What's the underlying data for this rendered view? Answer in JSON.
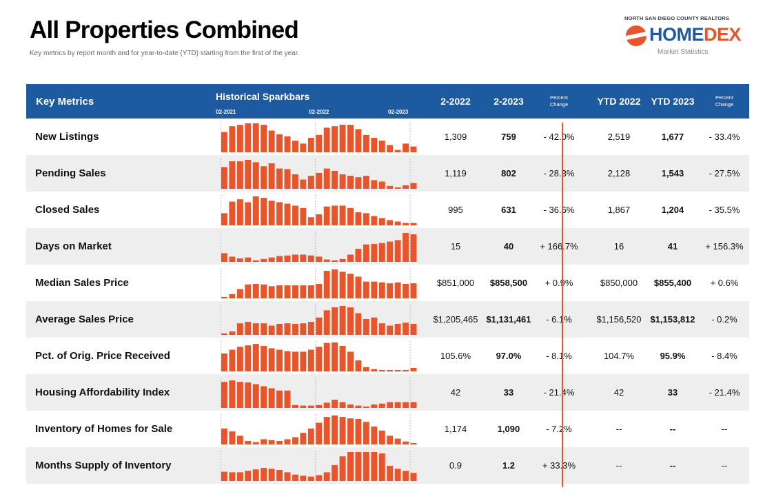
{
  "header": {
    "title": "All Properties Combined",
    "subtitle": "Key metrics by report month and for year-to-date (YTD) starting from the first of the year."
  },
  "logo": {
    "top_text": "NORTH SAN DIEGO COUNTY REALTORS",
    "word_home": "HOME",
    "word_dex": "DEX",
    "sub_text": "Market Statistics"
  },
  "columns": {
    "key_metrics": "Key Metrics",
    "sparkbars": "Historical Sparkbars",
    "spark_dates": [
      "02-2021",
      "02-2022",
      "02-2023"
    ],
    "month_prev": "2-2022",
    "month_curr": "2-2023",
    "pct_change_1": "Percent",
    "pct_change_2": "Change",
    "ytd_prev": "YTD 2022",
    "ytd_curr": "YTD 2023"
  },
  "colors": {
    "header_bg": "#1d5aa0",
    "bar": "#e8552a",
    "row_alt": "#eeeeee",
    "divider": "#e8552a"
  },
  "rows": [
    {
      "label": "New Listings",
      "prev": "1,309",
      "curr": "759",
      "pct": "- 42.0%",
      "ytd_prev": "2,519",
      "ytd_curr": "1,677",
      "ytd_pct": "- 33.4%",
      "spark": [
        0.7,
        0.9,
        0.95,
        1.0,
        1.0,
        0.95,
        0.75,
        0.62,
        0.55,
        0.4,
        0.3,
        0.5,
        0.6,
        0.85,
        0.9,
        0.95,
        0.95,
        0.8,
        0.6,
        0.5,
        0.4,
        0.25,
        0.08,
        0.3,
        0.2
      ]
    },
    {
      "label": "Pending Sales",
      "prev": "1,119",
      "curr": "802",
      "pct": "- 28.3%",
      "ytd_prev": "2,128",
      "ytd_curr": "1,543",
      "ytd_pct": "- 27.5%",
      "spark": [
        0.75,
        0.95,
        0.95,
        1.0,
        0.92,
        0.78,
        0.88,
        0.7,
        0.68,
        0.5,
        0.32,
        0.45,
        0.55,
        0.7,
        0.62,
        0.5,
        0.45,
        0.4,
        0.45,
        0.3,
        0.25,
        0.1,
        0.05,
        0.12,
        0.2
      ]
    },
    {
      "label": "Closed Sales",
      "prev": "995",
      "curr": "631",
      "pct": "- 36.6%",
      "ytd_prev": "1,867",
      "ytd_curr": "1,204",
      "ytd_pct": "- 35.5%",
      "spark": [
        0.42,
        0.82,
        0.9,
        0.8,
        1.0,
        0.95,
        0.85,
        0.8,
        0.75,
        0.68,
        0.6,
        0.28,
        0.38,
        0.65,
        0.68,
        0.68,
        0.6,
        0.45,
        0.42,
        0.32,
        0.25,
        0.18,
        0.13,
        0.08,
        0.08
      ]
    },
    {
      "label": "Days on Market",
      "prev": "15",
      "curr": "40",
      "pct": "+ 166.7%",
      "ytd_prev": "16",
      "ytd_curr": "41",
      "ytd_pct": "+ 156.3%",
      "spark": [
        0.3,
        0.18,
        0.12,
        0.15,
        0.05,
        0.1,
        0.15,
        0.2,
        0.22,
        0.25,
        0.25,
        0.22,
        0.18,
        0.08,
        0.05,
        0.1,
        0.25,
        0.45,
        0.6,
        0.62,
        0.65,
        0.7,
        0.75,
        1.0,
        0.95
      ]
    },
    {
      "label": "Median Sales Price",
      "prev": "$851,000",
      "curr": "$858,500",
      "pct": "+ 0.9%",
      "ytd_prev": "$850,000",
      "ytd_curr": "$855,400",
      "ytd_pct": "+ 0.6%",
      "spark": [
        0.05,
        0.15,
        0.32,
        0.48,
        0.5,
        0.48,
        0.42,
        0.45,
        0.45,
        0.45,
        0.45,
        0.45,
        0.5,
        0.95,
        1.0,
        0.92,
        0.85,
        0.75,
        0.58,
        0.58,
        0.55,
        0.52,
        0.55,
        0.5,
        0.52
      ]
    },
    {
      "label": "Average Sales Price",
      "prev": "$1,205,465",
      "curr": "$1,131,461",
      "pct": "- 6.1%",
      "ytd_prev": "$1,156,520",
      "ytd_curr": "$1,153,812",
      "ytd_pct": "- 0.2%",
      "spark": [
        0.05,
        0.12,
        0.4,
        0.45,
        0.4,
        0.4,
        0.32,
        0.38,
        0.4,
        0.38,
        0.4,
        0.45,
        0.6,
        0.85,
        0.95,
        1.0,
        0.95,
        0.75,
        0.55,
        0.6,
        0.4,
        0.32,
        0.38,
        0.42,
        0.38
      ]
    },
    {
      "label": "Pct. of Orig. Price Received",
      "prev": "105.6%",
      "curr": "97.0%",
      "pct": "- 8.1%",
      "ytd_prev": "104.7%",
      "ytd_curr": "95.9%",
      "ytd_pct": "- 8.4%",
      "spark": [
        0.62,
        0.75,
        0.85,
        0.9,
        0.95,
        0.88,
        0.8,
        0.75,
        0.7,
        0.68,
        0.68,
        0.75,
        0.85,
        0.98,
        1.0,
        0.88,
        0.68,
        0.38,
        0.15,
        0.08,
        0.05,
        0.05,
        0.03,
        0.05,
        0.12
      ]
    },
    {
      "label": "Housing Affordability Index",
      "prev": "42",
      "curr": "33",
      "pct": "- 21.4%",
      "ytd_prev": "42",
      "ytd_curr": "33",
      "ytd_pct": "- 21.4%",
      "spark": [
        0.9,
        0.95,
        0.9,
        0.88,
        0.82,
        0.75,
        0.68,
        0.6,
        0.6,
        0.1,
        0.08,
        0.08,
        0.1,
        0.18,
        0.28,
        0.2,
        0.12,
        0.08,
        0.05,
        0.12,
        0.15,
        0.2,
        0.2,
        0.2,
        0.2
      ]
    },
    {
      "label": "Inventory of Homes for Sale",
      "prev": "1,174",
      "curr": "1,090",
      "pct": "- 7.2%",
      "ytd_prev": "--",
      "ytd_curr": "--",
      "ytd_pct": "--",
      "spark": [
        0.55,
        0.45,
        0.3,
        0.12,
        0.08,
        0.18,
        0.15,
        0.12,
        0.18,
        0.25,
        0.4,
        0.55,
        0.75,
        0.95,
        1.0,
        0.95,
        0.9,
        0.88,
        0.78,
        0.62,
        0.48,
        0.3,
        0.2,
        0.1,
        0.05
      ]
    },
    {
      "label": "Months Supply of Inventory",
      "prev": "0.9",
      "curr": "1.2",
      "pct": "+ 33.3%",
      "ytd_prev": "--",
      "ytd_curr": "--",
      "ytd_pct": "--",
      "spark": [
        0.32,
        0.3,
        0.3,
        0.35,
        0.4,
        0.45,
        0.42,
        0.38,
        0.3,
        0.22,
        0.18,
        0.15,
        0.2,
        0.3,
        0.55,
        0.85,
        1.0,
        1.0,
        1.0,
        1.0,
        0.95,
        0.52,
        0.42,
        0.35,
        0.28
      ]
    }
  ]
}
